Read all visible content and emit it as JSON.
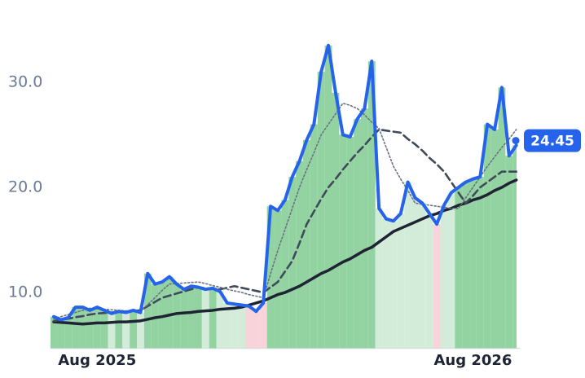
{
  "chart_data": {
    "type": "line",
    "categories": [
      null,
      null,
      null,
      null,
      null,
      null,
      "Aug 2025",
      null,
      null,
      null,
      null,
      null,
      null,
      null,
      null,
      null,
      null,
      null,
      null,
      null,
      null,
      null,
      null,
      null,
      null,
      null,
      null,
      null,
      null,
      null,
      null,
      null,
      null,
      null,
      null,
      null,
      null,
      null,
      null,
      null,
      null,
      null,
      null,
      null,
      null,
      null,
      null,
      null,
      null,
      null,
      null,
      null,
      null,
      null,
      null,
      null,
      null,
      null,
      "Aug 2026",
      null,
      null,
      null,
      null,
      null,
      null
    ],
    "series": [
      {
        "color": "#2563eb",
        "style": "solid",
        "values": [
          7.7,
          7.4,
          7.6,
          8.6,
          8.6,
          8.3,
          8.6,
          8.3,
          8.0,
          8.2,
          8.1,
          8.3,
          8.1,
          11.8,
          10.8,
          11.0,
          11.5,
          10.8,
          10.3,
          10.6,
          10.5,
          10.3,
          10.4,
          10.1,
          9.0,
          8.9,
          8.8,
          8.7,
          8.2,
          9.0,
          18.2,
          17.8,
          18.8,
          21.0,
          22.5,
          24.5,
          26.0,
          31.0,
          33.5,
          29.0,
          25.0,
          24.8,
          26.5,
          27.5,
          32.0,
          18.0,
          17.0,
          16.8,
          17.5,
          20.5,
          19.0,
          18.5,
          17.5,
          16.5,
          18.3,
          19.5,
          20.0,
          20.5,
          20.8,
          21.0,
          26.0,
          25.5,
          29.5,
          23.0,
          24.0
        ]
      },
      {
        "color": "#6b7280",
        "style": "dotted",
        "values": [
          7.5,
          7.7,
          7.9,
          8.1,
          8.3,
          8.5,
          8.45,
          8.4,
          8.35,
          8.3,
          8.25,
          8.2,
          8.2,
          8.85,
          9.5,
          10.2,
          10.8,
          10.85,
          10.9,
          10.95,
          11.0,
          10.85,
          10.65,
          10.5,
          10.3,
          10.15,
          10.0,
          9.8,
          9.65,
          9.5,
          11.8,
          14.0,
          16.0,
          18.0,
          20.0,
          21.7,
          23.3,
          25.0,
          26.0,
          27.0,
          28.0,
          27.8,
          27.5,
          26.9,
          26.2,
          25.6,
          23.8,
          22.0,
          20.8,
          19.7,
          18.5,
          18.4,
          18.3,
          18.2,
          18.1,
          18.0,
          18.0,
          19.0,
          20.0,
          21.0,
          22.0,
          22.9,
          23.8,
          24.6,
          25.5
        ]
      },
      {
        "color": "#3f4a5a",
        "style": "dashed",
        "values": [
          7.3,
          7.4,
          7.5,
          7.65,
          7.75,
          7.9,
          8.0,
          8.05,
          8.1,
          8.15,
          8.2,
          8.25,
          8.3,
          8.7,
          9.1,
          9.5,
          9.7,
          9.9,
          10.1,
          10.3,
          10.5,
          10.4,
          10.35,
          10.3,
          10.45,
          10.6,
          10.45,
          10.3,
          10.15,
          10.0,
          10.5,
          11.0,
          12.0,
          13.0,
          14.7,
          16.5,
          17.7,
          18.9,
          20.0,
          20.8,
          21.7,
          22.5,
          23.3,
          24.0,
          24.8,
          25.5,
          25.4,
          25.3,
          25.2,
          24.6,
          24.1,
          23.5,
          22.8,
          22.2,
          21.5,
          20.5,
          19.5,
          18.5,
          19.2,
          20.0,
          20.5,
          21.0,
          21.5,
          21.5,
          21.5
        ]
      },
      {
        "color": "#1e2433",
        "style": "solid-thick",
        "values": [
          7.2,
          7.15,
          7.1,
          7.05,
          7.0,
          7.05,
          7.1,
          7.1,
          7.15,
          7.2,
          7.2,
          7.25,
          7.3,
          7.45,
          7.6,
          7.7,
          7.85,
          8.0,
          8.05,
          8.1,
          8.2,
          8.25,
          8.3,
          8.4,
          8.45,
          8.5,
          8.6,
          8.8,
          9.0,
          9.2,
          9.5,
          9.8,
          10.0,
          10.3,
          10.6,
          11.0,
          11.4,
          11.8,
          12.1,
          12.5,
          12.9,
          13.2,
          13.6,
          14.0,
          14.3,
          14.8,
          15.3,
          15.8,
          16.1,
          16.4,
          16.7,
          17.0,
          17.3,
          17.5,
          17.8,
          18.0,
          18.3,
          18.5,
          18.8,
          19.0,
          19.3,
          19.7,
          20.0,
          20.4,
          20.7
        ]
      }
    ],
    "area_colors": {
      "up": "#93d3a2",
      "down": "#d3ecd9",
      "below": "#f8d4da"
    },
    "current_price": 24.45,
    "ylim": [
      4.7,
      35.5
    ],
    "yticks": [
      {
        "value": 10,
        "label": "10.0"
      },
      {
        "value": 20,
        "label": "20.0"
      },
      {
        "value": 30,
        "label": "30.0"
      }
    ]
  }
}
